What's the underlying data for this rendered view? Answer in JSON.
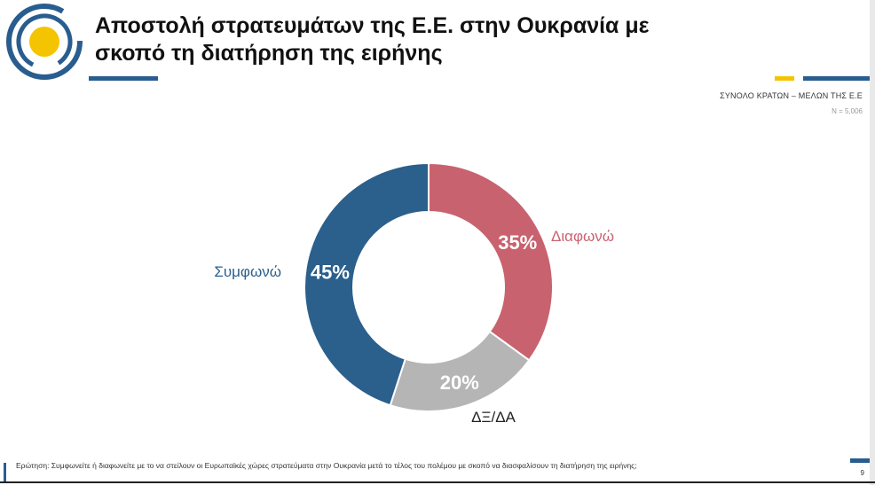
{
  "header": {
    "title": "Αποστολή στρατευμάτων της Ε.Ε. στην Ουκρανία με\nσκοπό τη διατήρηση της ειρήνης",
    "sample_label": "ΣΥΝΟΛΟ ΚΡΑΤΩΝ – ΜΕΛΩΝ ΤΗΣ Ε.Ε",
    "sample_size": "N = 5,006"
  },
  "colors": {
    "agree": "#2b5f8c",
    "disagree": "#c9626f",
    "dk": "#b5b5b5",
    "accent_yellow": "#f5c400",
    "accent_blue": "#2a5d8f"
  },
  "chart_data": {
    "type": "pie",
    "donut": true,
    "categories": [
      "Διαφωνώ",
      "ΔΞ/ΔΑ",
      "Συμφωνώ"
    ],
    "values": [
      35,
      20,
      45
    ],
    "value_labels": [
      "35%",
      "20%",
      "45%"
    ],
    "label_colors": [
      "#c9626f",
      "#222222",
      "#2b5f8c"
    ],
    "start": "top, clockwise"
  },
  "footer": {
    "question": "Ερώτηση: Συμφωνείτε ή διαφωνείτε με το να στείλουν οι Ευρωπαϊκές χώρες στρατεύματα στην Ουκρανία μετά το τέλος του πολέμου με σκοπό να διασφαλίσουν τη διατήρηση της ειρήνης;",
    "page": "9"
  }
}
